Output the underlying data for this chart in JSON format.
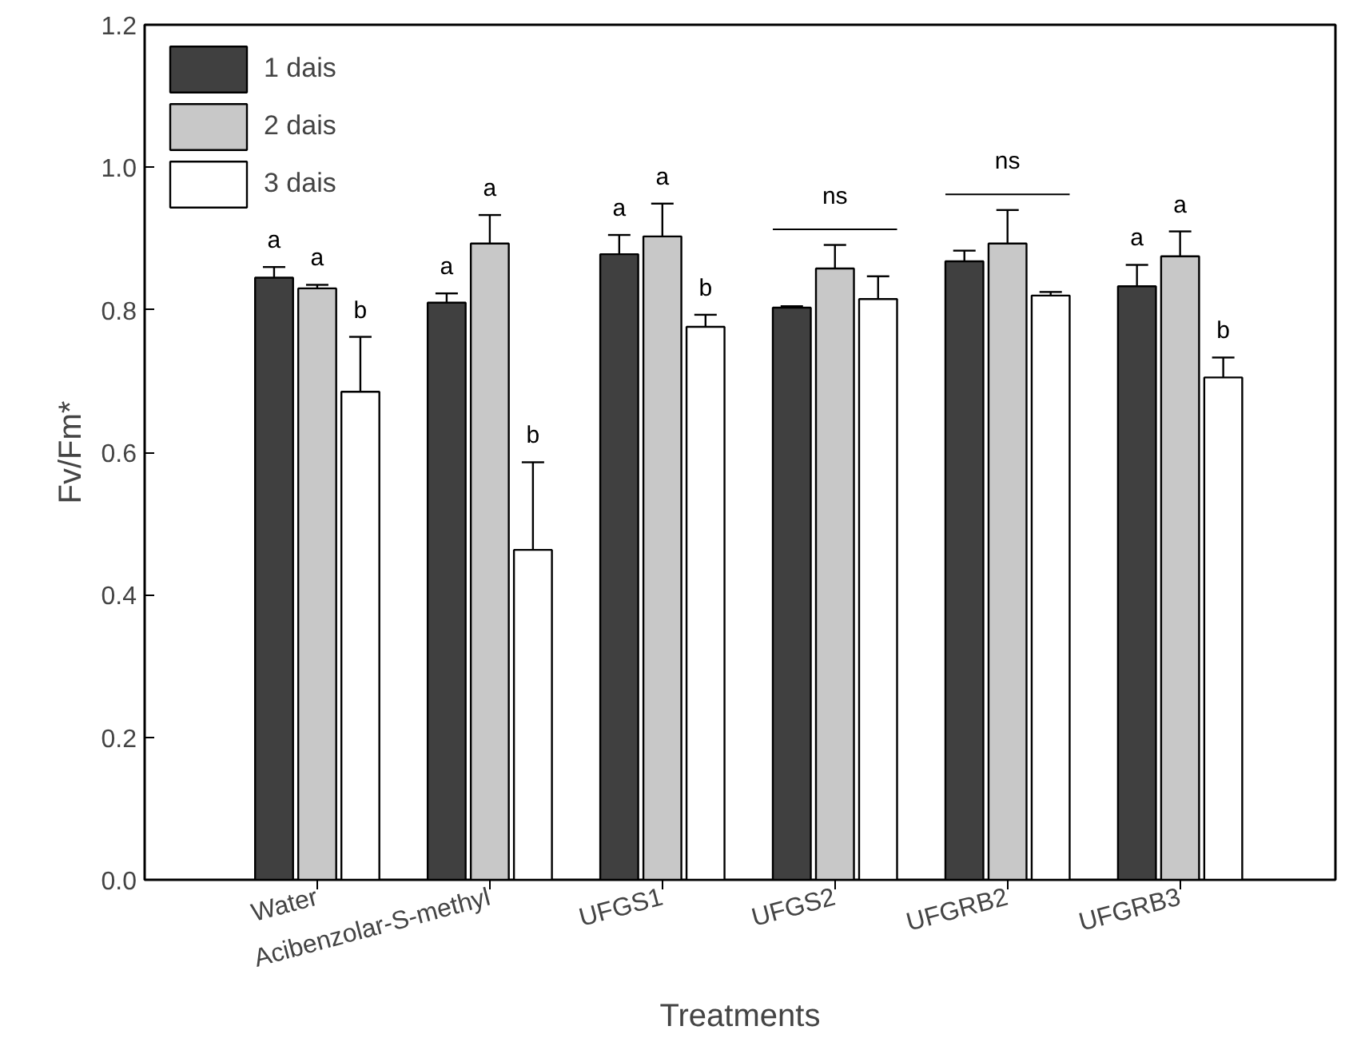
{
  "chart_data": {
    "type": "bar",
    "xlabel": "Treatments",
    "ylabel": "Fv/Fm*",
    "categories": [
      "Water",
      "Acibenzolar-S-methyl",
      "UFGS1",
      "UFGS2",
      "UFGRB2",
      "UFGRB3"
    ],
    "series": [
      {
        "name": "1 dais",
        "color": "#404040",
        "values": [
          0.845,
          0.81,
          0.878,
          0.803,
          0.868,
          0.833
        ],
        "errors": [
          0.015,
          0.013,
          0.027,
          0.002,
          0.015,
          0.03
        ]
      },
      {
        "name": "2 dais",
        "color": "#c8c8c8",
        "values": [
          0.83,
          0.893,
          0.903,
          0.858,
          0.893,
          0.875
        ],
        "errors": [
          0.005,
          0.04,
          0.046,
          0.033,
          0.047,
          0.035
        ]
      },
      {
        "name": "3 dais",
        "color": "#ffffff",
        "values": [
          0.685,
          0.463,
          0.776,
          0.815,
          0.82,
          0.705
        ],
        "errors": [
          0.077,
          0.123,
          0.017,
          0.032,
          0.005,
          0.028
        ]
      }
    ],
    "ylim": [
      0,
      1.2
    ],
    "yticks": [
      {
        "value": 0,
        "label": "0.0"
      },
      0.2,
      0.4,
      0.6,
      0.8,
      {
        "value": 1,
        "label": "1.0"
      },
      {
        "value": 1.2,
        "label": "1.2"
      }
    ],
    "legend": "top left",
    "grid": false,
    "annotations": [
      "a",
      "a",
      "b",
      "a",
      "a",
      "b",
      "a",
      "a",
      "b",
      {
        "text": "ns",
        "x": "UFGS2",
        "y": 0.891
      },
      {
        "text": "ns",
        "x": "UFGRB2",
        "y": 0.94
      },
      "a",
      "a",
      "b"
    ]
  }
}
